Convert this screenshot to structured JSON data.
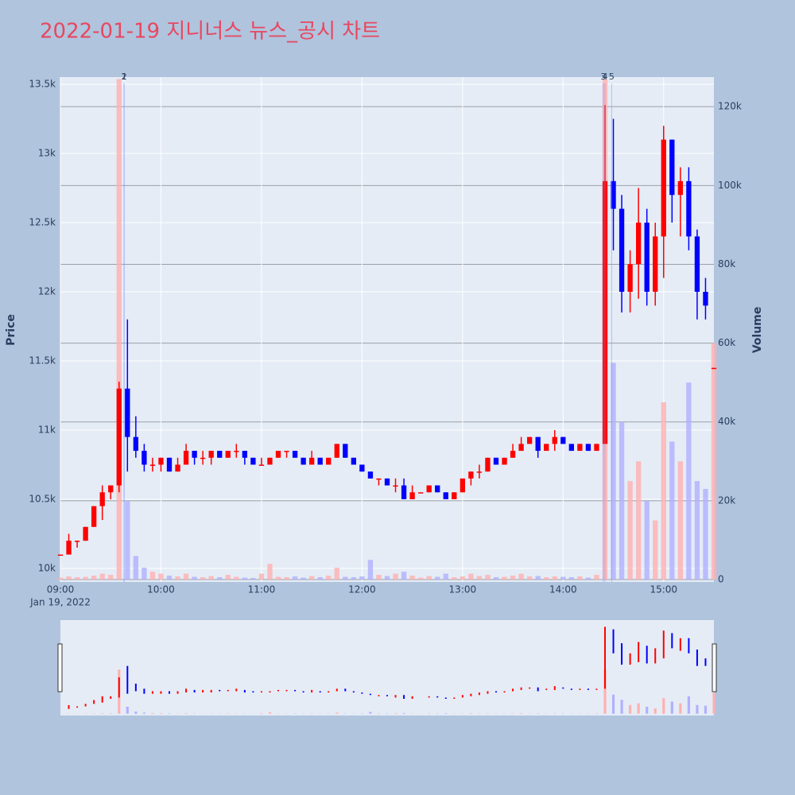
{
  "chart_data": {
    "type": "candlestick",
    "title": "2022-01-19 지니너스 뉴스_공시 차트",
    "y_label": "Price",
    "y2_label": "Volume",
    "x": [
      "09:00",
      "09:05",
      "09:10",
      "09:15",
      "09:20",
      "09:25",
      "09:30",
      "09:35",
      "09:40",
      "09:45",
      "09:50",
      "09:55",
      "10:00",
      "10:05",
      "10:10",
      "10:15",
      "10:20",
      "10:25",
      "10:30",
      "10:35",
      "10:40",
      "10:45",
      "10:50",
      "10:55",
      "11:00",
      "11:05",
      "11:10",
      "11:15",
      "11:20",
      "11:25",
      "11:30",
      "11:35",
      "11:40",
      "11:45",
      "11:50",
      "11:55",
      "12:00",
      "12:05",
      "12:10",
      "12:15",
      "12:20",
      "12:25",
      "12:30",
      "12:35",
      "12:40",
      "12:45",
      "12:50",
      "12:55",
      "13:00",
      "13:05",
      "13:10",
      "13:15",
      "13:20",
      "13:25",
      "13:30",
      "13:35",
      "13:40",
      "13:45",
      "13:50",
      "13:55",
      "14:00",
      "14:05",
      "14:10",
      "14:15",
      "14:20",
      "14:25",
      "14:30",
      "14:35",
      "14:40",
      "14:45",
      "14:50",
      "14:55",
      "15:00",
      "15:05",
      "15:10",
      "15:15",
      "15:20",
      "15:25",
      "15:30"
    ],
    "open": [
      10100,
      10100,
      10200,
      10200,
      10300,
      10450,
      10550,
      10600,
      11300,
      10950,
      10850,
      10750,
      10750,
      10800,
      10700,
      10750,
      10850,
      10800,
      10800,
      10850,
      10800,
      10850,
      10850,
      10800,
      10750,
      10750,
      10800,
      10850,
      10850,
      10800,
      10750,
      10800,
      10750,
      10800,
      10900,
      10800,
      10750,
      10700,
      10650,
      10650,
      10600,
      10600,
      10500,
      10550,
      10550,
      10600,
      10550,
      10500,
      10550,
      10650,
      10700,
      10700,
      10800,
      10750,
      10800,
      10850,
      10900,
      10950,
      10850,
      10900,
      10950,
      10900,
      10850,
      10900,
      10850,
      10900,
      12800,
      12600,
      12000,
      12200,
      12500,
      12000,
      12400,
      13100,
      12700,
      12800,
      12400,
      12000,
      11450
    ],
    "high": [
      10100,
      10250,
      10200,
      10300,
      10450,
      10600,
      10600,
      11350,
      11800,
      11100,
      10900,
      10800,
      10800,
      10800,
      10800,
      10900,
      10850,
      10850,
      10850,
      10850,
      10850,
      10900,
      10850,
      10800,
      10800,
      10800,
      10850,
      10850,
      10850,
      10800,
      10850,
      10800,
      10800,
      10900,
      10900,
      10800,
      10750,
      10700,
      10650,
      10650,
      10650,
      10650,
      10600,
      10550,
      10600,
      10600,
      10550,
      10550,
      10650,
      10700,
      10750,
      10800,
      10800,
      10800,
      10900,
      10950,
      10950,
      10950,
      10900,
      11000,
      10950,
      10900,
      10900,
      10900,
      10900,
      13350,
      13250,
      12700,
      12300,
      12750,
      12600,
      12500,
      13200,
      13100,
      12900,
      12900,
      12450,
      12100,
      11450
    ],
    "low": [
      10100,
      10100,
      10150,
      10200,
      10300,
      10350,
      10500,
      10550,
      10700,
      10800,
      10700,
      10700,
      10700,
      10700,
      10700,
      10750,
      10750,
      10750,
      10750,
      10800,
      10800,
      10800,
      10750,
      10750,
      10750,
      10750,
      10800,
      10800,
      10800,
      10750,
      10750,
      10750,
      10750,
      10800,
      10800,
      10750,
      10700,
      10650,
      10600,
      10600,
      10550,
      10500,
      10500,
      10550,
      10550,
      10550,
      10500,
      10500,
      10550,
      10600,
      10650,
      10700,
      10750,
      10750,
      10800,
      10850,
      10900,
      10800,
      10850,
      10850,
      10900,
      10850,
      10850,
      10850,
      10850,
      10900,
      12300,
      11850,
      11850,
      11950,
      11900,
      11900,
      12100,
      12500,
      12400,
      12300,
      11800,
      11800,
      11450
    ],
    "close": [
      10100,
      10200,
      10200,
      10300,
      10450,
      10550,
      10600,
      11300,
      10950,
      10850,
      10750,
      10750,
      10800,
      10700,
      10750,
      10850,
      10800,
      10800,
      10850,
      10800,
      10850,
      10850,
      10800,
      10750,
      10750,
      10800,
      10850,
      10850,
      10800,
      10750,
      10800,
      10750,
      10800,
      10900,
      10800,
      10750,
      10700,
      10650,
      10650,
      10600,
      10600,
      10500,
      10550,
      10550,
      10600,
      10550,
      10500,
      10550,
      10650,
      10700,
      10700,
      10800,
      10750,
      10800,
      10850,
      10900,
      10950,
      10850,
      10900,
      10950,
      10900,
      10850,
      10900,
      10850,
      10900,
      12800,
      12600,
      12000,
      12200,
      12500,
      12000,
      12400,
      13100,
      12700,
      12800,
      12400,
      12000,
      11900,
      11450
    ],
    "volume": [
      500,
      800,
      600,
      700,
      1000,
      1500,
      1200,
      127000,
      20000,
      6000,
      3000,
      2000,
      1500,
      1000,
      800,
      1500,
      700,
      600,
      900,
      600,
      1200,
      700,
      500,
      400,
      1500,
      4000,
      700,
      600,
      800,
      500,
      900,
      600,
      1000,
      3000,
      700,
      600,
      800,
      5000,
      1200,
      900,
      1500,
      2000,
      1000,
      500,
      900,
      700,
      1500,
      600,
      800,
      1500,
      900,
      1200,
      600,
      700,
      1000,
      1500,
      800,
      900,
      600,
      800,
      700,
      600,
      800,
      500,
      1200,
      127000,
      55000,
      40000,
      25000,
      30000,
      20000,
      15000,
      45000,
      35000,
      30000,
      50000,
      25000,
      23000,
      60000
    ],
    "increasing_color": "#ff0000",
    "decreasing_color": "#0000ff",
    "increasing_volume_color": "#ffb0b0",
    "decreasing_volume_color": "#b0b0ff",
    "xlim": [
      "09:00",
      "15:30"
    ],
    "xticks": [
      "09:00",
      "10:00",
      "11:00",
      "12:00",
      "13:00",
      "14:00",
      "15:00"
    ],
    "x_date_label": "Jan 19, 2022",
    "ylim": [
      9902,
      13552
    ],
    "yticks": [
      {
        "value": 10000,
        "label": "10k"
      },
      {
        "value": 10500,
        "label": "10.5k"
      },
      {
        "value": 11000,
        "label": "11k"
      },
      {
        "value": 11500,
        "label": "11.5k"
      },
      {
        "value": 12000,
        "label": "12k"
      },
      {
        "value": 12500,
        "label": "12.5k"
      },
      {
        "value": 13000,
        "label": "13k"
      },
      {
        "value": 13500,
        "label": "13.5k"
      }
    ],
    "y2lim": [
      -600,
      127500
    ],
    "y2ticks": [
      0,
      {
        "value": 20000,
        "label": "20k"
      },
      {
        "value": 40000,
        "label": "40k"
      },
      {
        "value": 60000,
        "label": "60k"
      },
      {
        "value": 80000,
        "label": "80k"
      },
      {
        "value": 100000,
        "label": "100k"
      },
      {
        "value": 120000,
        "label": "120k"
      }
    ],
    "annotations": [
      {
        "text": "1",
        "x": "09:38"
      },
      {
        "text": "2",
        "x": "09:38"
      },
      {
        "text": "3",
        "x": "14:24"
      },
      {
        "text": "4",
        "x": "14:25"
      },
      {
        "text": "5",
        "x": "14:29"
      }
    ],
    "grid": true,
    "range_slider": true
  }
}
